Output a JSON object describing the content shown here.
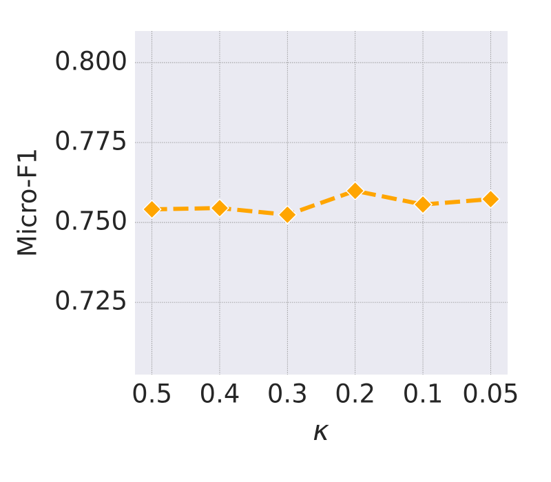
{
  "chart_data": {
    "type": "line",
    "x_label": "κ",
    "y_label": "Micro-F1",
    "categories": [
      "0.5",
      "0.4",
      "0.3",
      "0.2",
      "0.1",
      "0.05"
    ],
    "series": [
      {
        "color": "#ffa500",
        "values": [
          0.7541,
          0.7545,
          0.7524,
          0.7599,
          0.7556,
          0.7573
        ]
      }
    ],
    "ylim": [
      0.7024,
      0.8099
    ],
    "yticks": [
      {
        "value": 0.725,
        "label": "0.725"
      },
      {
        "value": 0.75,
        "label": "0.750"
      },
      {
        "value": 0.775,
        "label": "0.775"
      },
      {
        "value": 0.8,
        "label": "0.800"
      }
    ],
    "grid": true
  }
}
